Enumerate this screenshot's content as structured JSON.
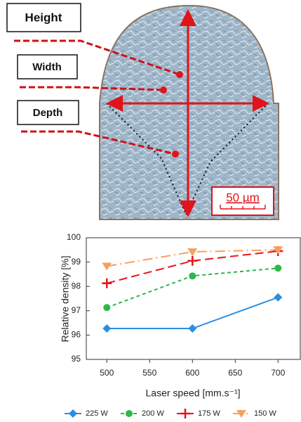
{
  "image_labels": {
    "height": "Height",
    "width": "Width",
    "depth": "Depth",
    "scale_bar": "50 µm"
  },
  "chart_data": {
    "type": "line",
    "x_label": "Laser speed [mm.s⁻¹]",
    "y_label": "Relative density [%]",
    "x": [
      500,
      600,
      700
    ],
    "xlim": [
      476,
      726
    ],
    "xticks": [
      500,
      550,
      600,
      650,
      700
    ],
    "ylim": [
      95,
      100
    ],
    "yticks": [
      95,
      96,
      97,
      98,
      99,
      100
    ],
    "series": [
      {
        "name": "225 W",
        "color": "#2a8ee0",
        "marker": "diamond",
        "dash": "solid",
        "values": [
          96.27,
          96.27,
          97.55
        ]
      },
      {
        "name": "200 W",
        "color": "#2cb84a",
        "marker": "circle",
        "dash": "dashed",
        "values": [
          97.13,
          98.43,
          98.75
        ]
      },
      {
        "name": "175 W",
        "color": "#e8141c",
        "marker": "plus",
        "dash": "longdash",
        "values": [
          98.13,
          99.05,
          99.45
        ]
      },
      {
        "name": "150 W",
        "color": "#f5a060",
        "marker": "triangle-down",
        "dash": "dashdot",
        "values": [
          98.83,
          99.42,
          99.5
        ]
      }
    ]
  }
}
